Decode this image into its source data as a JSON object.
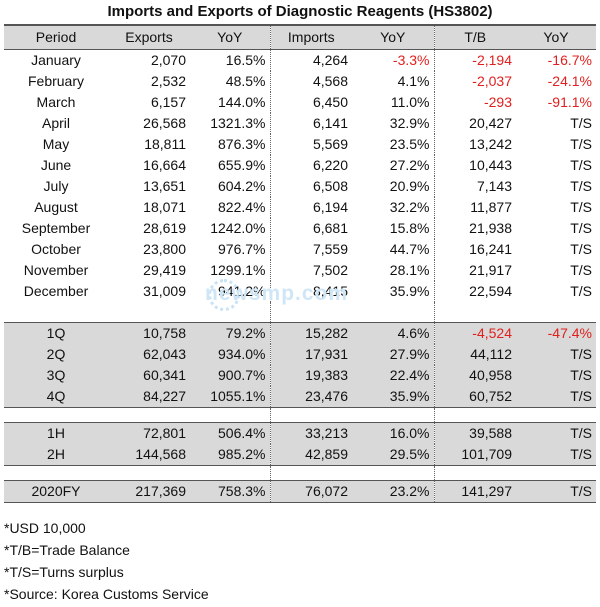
{
  "title": "Imports and Exports of Diagnostic Reagents (HS3802)",
  "headers": [
    "Period",
    "Exports",
    "YoY",
    "Imports",
    "YoY",
    "T/B",
    "YoY"
  ],
  "months": [
    {
      "period": "January",
      "exports": "2,070",
      "exp_yoy": "16.5%",
      "imports": "4,264",
      "imp_yoy": "-3.3%",
      "tb": "-2,194",
      "tb_yoy": "-16.7%"
    },
    {
      "period": "February",
      "exports": "2,532",
      "exp_yoy": "48.5%",
      "imports": "4,568",
      "imp_yoy": "4.1%",
      "tb": "-2,037",
      "tb_yoy": "-24.1%"
    },
    {
      "period": "March",
      "exports": "6,157",
      "exp_yoy": "144.0%",
      "imports": "6,450",
      "imp_yoy": "11.0%",
      "tb": "-293",
      "tb_yoy": "-91.1%"
    },
    {
      "period": "April",
      "exports": "26,568",
      "exp_yoy": "1321.3%",
      "imports": "6,141",
      "imp_yoy": "32.9%",
      "tb": "20,427",
      "tb_yoy": "T/S"
    },
    {
      "period": "May",
      "exports": "18,811",
      "exp_yoy": "876.3%",
      "imports": "5,569",
      "imp_yoy": "23.5%",
      "tb": "13,242",
      "tb_yoy": "T/S"
    },
    {
      "period": "June",
      "exports": "16,664",
      "exp_yoy": "655.9%",
      "imports": "6,220",
      "imp_yoy": "27.2%",
      "tb": "10,443",
      "tb_yoy": "T/S"
    },
    {
      "period": "July",
      "exports": "13,651",
      "exp_yoy": "604.2%",
      "imports": "6,508",
      "imp_yoy": "20.9%",
      "tb": "7,143",
      "tb_yoy": "T/S"
    },
    {
      "period": "August",
      "exports": "18,071",
      "exp_yoy": "822.4%",
      "imports": "6,194",
      "imp_yoy": "32.2%",
      "tb": "11,877",
      "tb_yoy": "T/S"
    },
    {
      "period": "September",
      "exports": "28,619",
      "exp_yoy": "1242.0%",
      "imports": "6,681",
      "imp_yoy": "15.8%",
      "tb": "21,938",
      "tb_yoy": "T/S"
    },
    {
      "period": "October",
      "exports": "23,800",
      "exp_yoy": "976.7%",
      "imports": "7,559",
      "imp_yoy": "44.7%",
      "tb": "16,241",
      "tb_yoy": "T/S"
    },
    {
      "period": "November",
      "exports": "29,419",
      "exp_yoy": "1299.1%",
      "imports": "7,502",
      "imp_yoy": "28.1%",
      "tb": "21,917",
      "tb_yoy": "T/S"
    },
    {
      "period": "December",
      "exports": "31,009",
      "exp_yoy": "941.2%",
      "imports": "8,415",
      "imp_yoy": "35.9%",
      "tb": "22,594",
      "tb_yoy": "T/S"
    }
  ],
  "quarters": [
    {
      "period": "1Q",
      "exports": "10,758",
      "exp_yoy": "79.2%",
      "imports": "15,282",
      "imp_yoy": "4.6%",
      "tb": "-4,524",
      "tb_yoy": "-47.4%"
    },
    {
      "period": "2Q",
      "exports": "62,043",
      "exp_yoy": "934.0%",
      "imports": "17,931",
      "imp_yoy": "27.9%",
      "tb": "44,112",
      "tb_yoy": "T/S"
    },
    {
      "period": "3Q",
      "exports": "60,341",
      "exp_yoy": "900.7%",
      "imports": "19,383",
      "imp_yoy": "22.4%",
      "tb": "40,958",
      "tb_yoy": "T/S"
    },
    {
      "period": "4Q",
      "exports": "84,227",
      "exp_yoy": "1055.1%",
      "imports": "23,476",
      "imp_yoy": "35.9%",
      "tb": "60,752",
      "tb_yoy": "T/S"
    }
  ],
  "halves": [
    {
      "period": "1H",
      "exports": "72,801",
      "exp_yoy": "506.4%",
      "imports": "33,213",
      "imp_yoy": "16.0%",
      "tb": "39,588",
      "tb_yoy": "T/S"
    },
    {
      "period": "2H",
      "exports": "144,568",
      "exp_yoy": "985.2%",
      "imports": "42,859",
      "imp_yoy": "29.5%",
      "tb": "101,709",
      "tb_yoy": "T/S"
    }
  ],
  "full_year": [
    {
      "period": "2020FY",
      "exports": "217,369",
      "exp_yoy": "758.3%",
      "imports": "76,072",
      "imp_yoy": "23.2%",
      "tb": "141,297",
      "tb_yoy": "T/S"
    }
  ],
  "notes": [
    "*USD 10,000",
    "*T/B=Trade Balance",
    "*T/S=Turns surplus",
    "*Source: Korea Customs Service"
  ],
  "watermark": "newsmp.com",
  "colors": {
    "header_bg": "#d9d9d9",
    "negative": "#e0201e",
    "shaded_bg": "#d9d9d9"
  }
}
